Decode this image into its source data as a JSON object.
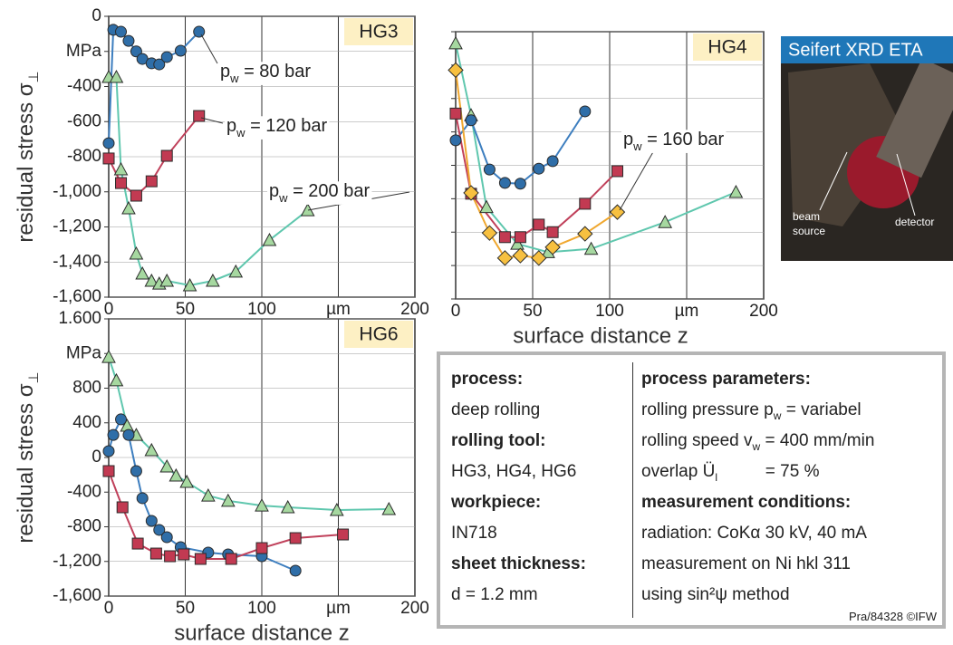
{
  "chart_data": [
    {
      "type": "line",
      "title": "HG3",
      "ylabel": [
        "residual stress σ",
        "⊥"
      ],
      "grid": true,
      "show_ytick_labels": true,
      "xlim": [
        0,
        200
      ],
      "xticks": [
        0,
        50,
        100,
        {
          "value": 150,
          "label": "µm"
        },
        200
      ],
      "ylim": [
        -1600,
        0
      ],
      "yticks": [
        0,
        {
          "value": -200,
          "label": "MPa"
        },
        -400,
        -600,
        -800,
        {
          "value": -1000,
          "label": "-1,000"
        },
        {
          "value": -1200,
          "label": "-1,200"
        },
        {
          "value": -1400,
          "label": "-1,400"
        },
        {
          "value": -1600,
          "label": "-1,600"
        }
      ],
      "series": [
        {
          "marker": "circle",
          "color": "#3d7ebf",
          "marker_color": "#2f6ea8",
          "x": [
            0,
            3,
            8,
            13,
            18,
            22,
            28,
            33,
            38,
            47,
            59
          ],
          "values": [
            -723,
            -77,
            -88,
            -140,
            -200,
            -243,
            -268,
            -274,
            -232,
            -196,
            -88
          ]
        },
        {
          "marker": "square",
          "color": "#c0405a",
          "marker_color": "#c23a52",
          "x": [
            0,
            8,
            18,
            28,
            38,
            59
          ],
          "values": [
            -810,
            -950,
            -1022,
            -940,
            -795,
            -568
          ]
        },
        {
          "marker": "triangle",
          "color": "#5fc7ae",
          "marker_color": "#a6d8a0",
          "x": [
            0,
            5,
            8,
            13,
            18,
            22,
            28,
            33,
            38,
            53,
            68,
            83,
            105,
            130
          ],
          "values": [
            -346,
            -346,
            -872,
            -1094,
            -1352,
            -1466,
            -1507,
            -1523,
            -1507,
            -1533,
            -1507,
            -1455,
            -1275,
            -1105
          ]
        }
      ],
      "annotations": [
        [
          "p",
          "w",
          " = 80 bar"
        ],
        [
          "p",
          "w",
          " = 120 bar"
        ],
        [
          "p",
          "w",
          " = 200 bar"
        ]
      ]
    },
    {
      "type": "line",
      "title": "HG4",
      "xlabel": "surface distance z",
      "grid": true,
      "show_ytick_labels": false,
      "xlim": [
        0,
        200
      ],
      "xticks": [
        0,
        50,
        100,
        {
          "value": 150,
          "label": "µm"
        },
        200
      ],
      "ylim": [
        -1600,
        0
      ],
      "yticks": [
        0,
        -200,
        -400,
        -600,
        -800,
        -1000,
        -1200,
        -1400,
        -1600
      ],
      "series": [
        {
          "marker": "triangle",
          "color": "#5fc7ae",
          "marker_color": "#a6d8a0",
          "x": [
            0,
            10,
            20,
            40,
            60,
            88,
            136,
            182
          ],
          "values": [
            -70,
            -500,
            -1050,
            -1270,
            -1320,
            -1300,
            -1140,
            -960
          ]
        },
        {
          "marker": "circle",
          "color": "#3d7ebf",
          "marker_color": "#2f6ea8",
          "x": [
            0,
            10,
            22,
            32,
            42,
            54,
            63,
            84
          ],
          "values": [
            -650,
            -530,
            -825,
            -905,
            -910,
            -820,
            -775,
            -477
          ]
        },
        {
          "marker": "square",
          "color": "#c0405a",
          "marker_color": "#c23a52",
          "x": [
            0,
            10,
            32,
            42,
            54,
            63,
            84,
            105
          ],
          "values": [
            -490,
            -970,
            -1230,
            -1230,
            -1155,
            -1200,
            -1030,
            -835
          ]
        },
        {
          "marker": "diamond",
          "color": "#f0a830",
          "marker_color": "#f7c040",
          "x": [
            0,
            10,
            22,
            32,
            42,
            54,
            63,
            84,
            105
          ],
          "values": [
            -230,
            -965,
            -1205,
            -1355,
            -1340,
            -1355,
            -1290,
            -1210,
            -1080
          ]
        }
      ],
      "annotations": [
        [
          "p",
          "w",
          " = 160 bar"
        ]
      ]
    },
    {
      "type": "line",
      "title": "HG6",
      "xlabel": "surface distance z",
      "ylabel": [
        "residual stress σ",
        "⊥"
      ],
      "grid": true,
      "show_ytick_labels": true,
      "xlim": [
        0,
        200
      ],
      "xticks": [
        0,
        50,
        100,
        {
          "value": 150,
          "label": "µm"
        },
        200
      ],
      "ylim": [
        -1600,
        1600
      ],
      "yticks": [
        {
          "value": 1600,
          "label": "1.600"
        },
        {
          "value": 1200,
          "label": "MPa"
        },
        800,
        400,
        0,
        -400,
        -800,
        {
          "value": -1200,
          "label": "-1,200"
        },
        {
          "value": -1600,
          "label": "-1,600"
        }
      ],
      "series": [
        {
          "marker": "triangle",
          "color": "#5fc7ae",
          "marker_color": "#a6d8a0",
          "x": [
            0,
            5,
            12,
            18,
            28,
            38,
            44,
            51,
            65,
            78,
            100,
            117,
            149,
            183
          ],
          "values": [
            1160,
            890,
            366,
            260,
            84,
            -105,
            -209,
            -282,
            -440,
            -500,
            -555,
            -575,
            -607,
            -596
          ]
        },
        {
          "marker": "circle",
          "color": "#3d7ebf",
          "marker_color": "#2f6ea8",
          "x": [
            0,
            3,
            8,
            13,
            18,
            22,
            28,
            33,
            38,
            47,
            65,
            78,
            100,
            122
          ],
          "values": [
            73,
            260,
            440,
            260,
            -157,
            -470,
            -732,
            -836,
            -920,
            -1035,
            -1098,
            -1119,
            -1140,
            -1307
          ]
        },
        {
          "marker": "square",
          "color": "#c0405a",
          "marker_color": "#c23a52",
          "x": [
            0,
            9,
            19,
            31,
            40,
            49,
            60,
            80,
            100,
            122,
            153
          ],
          "values": [
            -157,
            -575,
            -994,
            -1109,
            -1140,
            -1119,
            -1171,
            -1171,
            -1046,
            -931,
            -889
          ]
        }
      ],
      "annotations": []
    }
  ],
  "photo": {
    "title": "Seifert XRD ETA",
    "labels": [
      "beam",
      "source",
      "detector"
    ]
  },
  "table": {
    "left": [
      "process:",
      "deep rolling",
      "rolling tool:",
      "HG3, HG4, HG6",
      "workpiece:",
      "IN718",
      "sheet thickness:",
      "d = 1.2 mm"
    ],
    "right": [
      "process parameters:",
      [
        "rolling pressure p",
        "w",
        " = variabel"
      ],
      [
        "rolling speed v",
        "w",
        " = 400 mm/min"
      ],
      [
        "overlap Ü",
        "l",
        "          = 75 %"
      ],
      "measurement conditions:",
      "radiation: CoKα 30 kV, 40 mA",
      "measurement on Ni hkl 311",
      "using sin²ψ method"
    ],
    "footer": "Pra/84328 ©IFW"
  }
}
